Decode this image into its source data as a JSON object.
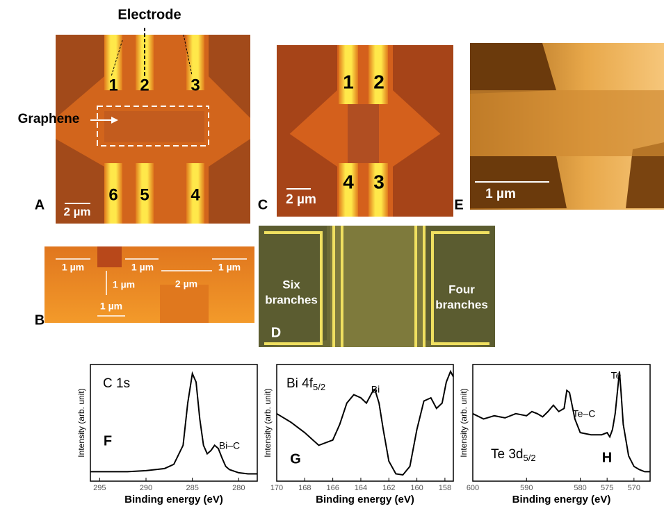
{
  "panels": {
    "A": {
      "label": "A",
      "electrode": "Electrode",
      "graphene": "Graphene",
      "numbers": [
        "1",
        "2",
        "3",
        "6",
        "5",
        "4"
      ],
      "scale": "2 µm"
    },
    "B": {
      "label": "B",
      "dims": [
        "1 µm",
        "1 µm",
        "1 µm",
        "1 µm",
        "2 µm",
        "1 µm"
      ]
    },
    "C": {
      "label": "C",
      "numbers": [
        "1",
        "2",
        "4",
        "3"
      ],
      "scale": "2 µm"
    },
    "D": {
      "label": "D",
      "left": [
        "Six",
        "branches"
      ],
      "right": [
        "Four",
        "branches"
      ]
    },
    "E": {
      "label": "E",
      "scale": "1 µm"
    }
  },
  "chart_data": [
    {
      "type": "line",
      "title": "C 1s",
      "panel": "F",
      "annotations": [
        "Bi–C"
      ],
      "x_label": "Binding energy (eV)",
      "y_label": "Intensity (arb. unit)",
      "xlim": [
        296,
        278
      ],
      "xticks": [
        295,
        290,
        285,
        280
      ],
      "ylim": [
        0,
        1
      ],
      "x": [
        296,
        294,
        292,
        290,
        288,
        287,
        286,
        285.5,
        285,
        284.6,
        284.2,
        283.8,
        283.4,
        283,
        282.6,
        282.2,
        281.8,
        281.4,
        281,
        280,
        279,
        278
      ],
      "series": [
        {
          "color": "#000000",
          "values": [
            0.05,
            0.05,
            0.05,
            0.06,
            0.08,
            0.12,
            0.3,
            0.7,
            0.98,
            0.9,
            0.55,
            0.3,
            0.22,
            0.25,
            0.3,
            0.27,
            0.18,
            0.1,
            0.07,
            0.04,
            0.03,
            0.03
          ]
        }
      ]
    },
    {
      "type": "line",
      "title": "Bi 4f",
      "title_sub": "5/2",
      "panel": "G",
      "annotations": [
        "Bi"
      ],
      "x_label": "Binding energy (eV)",
      "y_label": "Intensity (arb. unit)",
      "xlim": [
        170,
        157.4
      ],
      "xticks": [
        170,
        168,
        166,
        164,
        162,
        160,
        158
      ],
      "ylim": [
        0,
        1
      ],
      "x": [
        170,
        169,
        168,
        167,
        166,
        165.5,
        165,
        164.5,
        164,
        163.6,
        163.2,
        163,
        162.7,
        162.4,
        162,
        161.5,
        161,
        160.5,
        160,
        159.5,
        159,
        158.6,
        158.2,
        157.9,
        157.6,
        157.4
      ],
      "series": [
        {
          "color": "#000000",
          "values": [
            0.6,
            0.52,
            0.42,
            0.3,
            0.35,
            0.5,
            0.7,
            0.78,
            0.75,
            0.7,
            0.8,
            0.83,
            0.7,
            0.45,
            0.15,
            0.03,
            0.02,
            0.1,
            0.45,
            0.72,
            0.75,
            0.65,
            0.7,
            0.9,
            1.0,
            0.95
          ]
        }
      ]
    },
    {
      "type": "line",
      "title": "Te 3d",
      "title_sub": "5/2",
      "panel": "H",
      "annotations": [
        "Te",
        "Te–C"
      ],
      "x_label": "Binding energy (eV)",
      "y_label": "Intensity (arb. unit)",
      "xlim": [
        600,
        567
      ],
      "xticks": [
        600,
        590,
        580,
        575,
        570
      ],
      "ylim": [
        0,
        1
      ],
      "x": [
        600,
        598,
        596,
        594,
        592,
        590,
        589,
        588,
        587,
        586,
        585,
        584,
        583,
        582.5,
        582,
        581,
        580,
        578,
        576,
        575,
        574.5,
        574,
        573.5,
        573,
        572.7,
        572.4,
        572,
        571,
        570,
        569,
        568,
        567
      ],
      "series": [
        {
          "color": "#000000",
          "values": [
            0.6,
            0.55,
            0.58,
            0.56,
            0.6,
            0.58,
            0.62,
            0.6,
            0.57,
            0.62,
            0.68,
            0.62,
            0.65,
            0.82,
            0.8,
            0.55,
            0.42,
            0.4,
            0.4,
            0.42,
            0.38,
            0.45,
            0.6,
            0.85,
            1.0,
            0.8,
            0.5,
            0.2,
            0.1,
            0.07,
            0.05,
            0.05
          ]
        }
      ]
    }
  ]
}
